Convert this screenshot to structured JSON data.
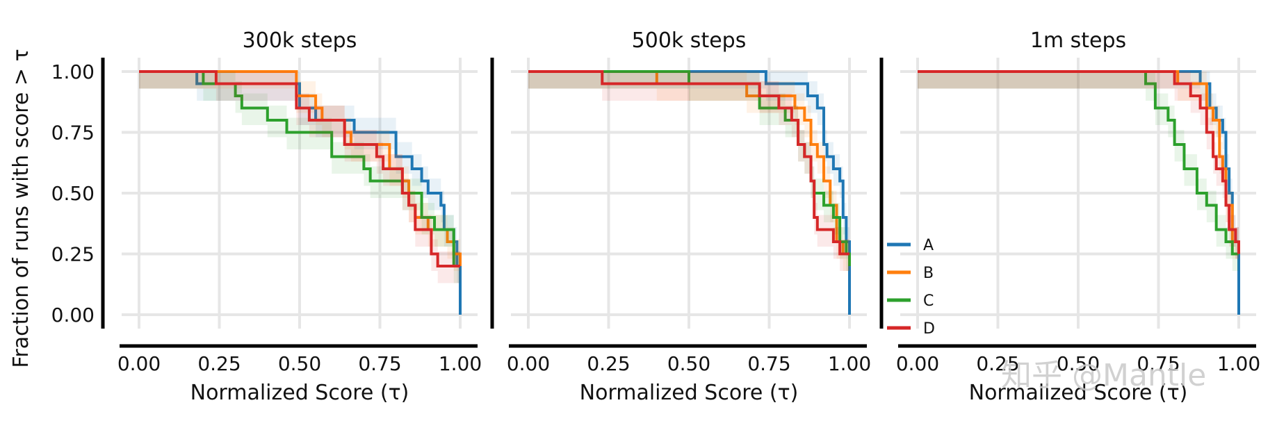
{
  "chart_data": {
    "type": "line",
    "step": true,
    "ylabel": "Fraction of runs with score > τ",
    "xlabel": "Normalized Score (τ)",
    "xlim": [
      0,
      1
    ],
    "ylim": [
      0,
      1
    ],
    "xticks": [
      "0.00",
      "0.25",
      "0.50",
      "0.75",
      "1.00"
    ],
    "yticks": [
      "0.00",
      "0.25",
      "0.50",
      "0.75",
      "1.00"
    ],
    "grid": true,
    "legend": {
      "placement": "bottom-left of third panel",
      "entries": [
        "A",
        "B",
        "C",
        "D"
      ]
    },
    "colors": {
      "A": "#1f77b4",
      "B": "#ff7f0e",
      "C": "#2ca02c",
      "D": "#d62728"
    },
    "panels": [
      {
        "title": "300k steps",
        "series": [
          {
            "name": "A",
            "points": [
              [
                0,
                1.0
              ],
              [
                0.17,
                1.0
              ],
              [
                0.18,
                0.95
              ],
              [
                0.48,
                0.95
              ],
              [
                0.5,
                0.85
              ],
              [
                0.55,
                0.8
              ],
              [
                0.66,
                0.8
              ],
              [
                0.67,
                0.75
              ],
              [
                0.78,
                0.75
              ],
              [
                0.8,
                0.7
              ],
              [
                0.8,
                0.65
              ],
              [
                0.84,
                0.65
              ],
              [
                0.85,
                0.6
              ],
              [
                0.88,
                0.55
              ],
              [
                0.9,
                0.5
              ],
              [
                0.94,
                0.45
              ],
              [
                0.95,
                0.35
              ],
              [
                0.98,
                0.3
              ],
              [
                0.99,
                0.2
              ],
              [
                1.0,
                0.0
              ]
            ]
          },
          {
            "name": "B",
            "points": [
              [
                0,
                1.0
              ],
              [
                0.24,
                1.0
              ],
              [
                0.25,
                1.0
              ],
              [
                0.48,
                1.0
              ],
              [
                0.49,
                0.9
              ],
              [
                0.55,
                0.85
              ],
              [
                0.57,
                0.8
              ],
              [
                0.64,
                0.75
              ],
              [
                0.66,
                0.7
              ],
              [
                0.76,
                0.7
              ],
              [
                0.78,
                0.6
              ],
              [
                0.82,
                0.55
              ],
              [
                0.84,
                0.45
              ],
              [
                0.86,
                0.4
              ],
              [
                0.9,
                0.35
              ],
              [
                0.96,
                0.3
              ],
              [
                0.98,
                0.25
              ],
              [
                1.0,
                0.2
              ]
            ]
          },
          {
            "name": "C",
            "points": [
              [
                0,
                1.0
              ],
              [
                0.19,
                1.0
              ],
              [
                0.2,
                0.95
              ],
              [
                0.3,
                0.9
              ],
              [
                0.32,
                0.85
              ],
              [
                0.4,
                0.8
              ],
              [
                0.46,
                0.75
              ],
              [
                0.58,
                0.75
              ],
              [
                0.6,
                0.65
              ],
              [
                0.7,
                0.6
              ],
              [
                0.72,
                0.55
              ],
              [
                0.81,
                0.55
              ],
              [
                0.82,
                0.5
              ],
              [
                0.88,
                0.4
              ],
              [
                0.92,
                0.35
              ],
              [
                0.98,
                0.2
              ],
              [
                1.0,
                0.2
              ]
            ]
          },
          {
            "name": "D",
            "points": [
              [
                0,
                1.0
              ],
              [
                0.23,
                1.0
              ],
              [
                0.24,
                0.95
              ],
              [
                0.47,
                0.95
              ],
              [
                0.49,
                0.85
              ],
              [
                0.53,
                0.8
              ],
              [
                0.6,
                0.8
              ],
              [
                0.64,
                0.7
              ],
              [
                0.74,
                0.65
              ],
              [
                0.76,
                0.6
              ],
              [
                0.8,
                0.6
              ],
              [
                0.82,
                0.5
              ],
              [
                0.84,
                0.45
              ],
              [
                0.86,
                0.35
              ],
              [
                0.91,
                0.25
              ],
              [
                0.93,
                0.2
              ],
              [
                0.98,
                0.2
              ],
              [
                1.0,
                0.2
              ]
            ]
          }
        ]
      },
      {
        "title": "500k steps",
        "series": [
          {
            "name": "A",
            "points": [
              [
                0,
                1.0
              ],
              [
                0.73,
                1.0
              ],
              [
                0.74,
                0.95
              ],
              [
                0.87,
                0.9
              ],
              [
                0.9,
                0.85
              ],
              [
                0.92,
                0.7
              ],
              [
                0.93,
                0.65
              ],
              [
                0.95,
                0.6
              ],
              [
                0.97,
                0.55
              ],
              [
                0.98,
                0.4
              ],
              [
                0.99,
                0.3
              ],
              [
                1.0,
                0.0
              ]
            ]
          },
          {
            "name": "B",
            "points": [
              [
                0,
                1.0
              ],
              [
                0.39,
                1.0
              ],
              [
                0.4,
                0.95
              ],
              [
                0.66,
                0.95
              ],
              [
                0.68,
                0.9
              ],
              [
                0.8,
                0.9
              ],
              [
                0.83,
                0.85
              ],
              [
                0.86,
                0.8
              ],
              [
                0.88,
                0.7
              ],
              [
                0.9,
                0.65
              ],
              [
                0.92,
                0.55
              ],
              [
                0.94,
                0.45
              ],
              [
                0.96,
                0.3
              ],
              [
                0.98,
                0.25
              ],
              [
                1.0,
                0.25
              ]
            ]
          },
          {
            "name": "C",
            "points": [
              [
                0,
                1.0
              ],
              [
                0.49,
                1.0
              ],
              [
                0.5,
                0.95
              ],
              [
                0.68,
                0.95
              ],
              [
                0.72,
                0.85
              ],
              [
                0.8,
                0.8
              ],
              [
                0.84,
                0.7
              ],
              [
                0.86,
                0.65
              ],
              [
                0.88,
                0.55
              ],
              [
                0.89,
                0.5
              ],
              [
                0.92,
                0.45
              ],
              [
                0.95,
                0.4
              ],
              [
                0.97,
                0.3
              ],
              [
                0.99,
                0.25
              ],
              [
                1.0,
                0.2
              ]
            ]
          },
          {
            "name": "D",
            "points": [
              [
                0,
                1.0
              ],
              [
                0.22,
                1.0
              ],
              [
                0.23,
                0.95
              ],
              [
                0.68,
                0.95
              ],
              [
                0.72,
                0.9
              ],
              [
                0.78,
                0.85
              ],
              [
                0.82,
                0.8
              ],
              [
                0.84,
                0.7
              ],
              [
                0.86,
                0.65
              ],
              [
                0.88,
                0.55
              ],
              [
                0.89,
                0.4
              ],
              [
                0.9,
                0.35
              ],
              [
                0.95,
                0.3
              ],
              [
                0.97,
                0.25
              ],
              [
                1.0,
                0.25
              ]
            ]
          }
        ]
      },
      {
        "title": "1m steps",
        "series": [
          {
            "name": "A",
            "points": [
              [
                0,
                1.0
              ],
              [
                0.87,
                1.0
              ],
              [
                0.88,
                0.95
              ],
              [
                0.91,
                0.85
              ],
              [
                0.93,
                0.8
              ],
              [
                0.95,
                0.75
              ],
              [
                0.96,
                0.6
              ],
              [
                0.97,
                0.5
              ],
              [
                0.98,
                0.35
              ],
              [
                0.99,
                0.3
              ],
              [
                1.0,
                0.0
              ]
            ]
          },
          {
            "name": "B",
            "points": [
              [
                0,
                1.0
              ],
              [
                0.8,
                1.0
              ],
              [
                0.81,
                0.95
              ],
              [
                0.88,
                0.95
              ],
              [
                0.9,
                0.85
              ],
              [
                0.92,
                0.8
              ],
              [
                0.94,
                0.65
              ],
              [
                0.95,
                0.6
              ],
              [
                0.96,
                0.45
              ],
              [
                0.98,
                0.3
              ],
              [
                1.0,
                0.25
              ]
            ]
          },
          {
            "name": "C",
            "points": [
              [
                0,
                1.0
              ],
              [
                0.7,
                1.0
              ],
              [
                0.71,
                0.95
              ],
              [
                0.74,
                0.85
              ],
              [
                0.78,
                0.8
              ],
              [
                0.8,
                0.7
              ],
              [
                0.83,
                0.6
              ],
              [
                0.87,
                0.5
              ],
              [
                0.9,
                0.45
              ],
              [
                0.93,
                0.35
              ],
              [
                0.96,
                0.3
              ],
              [
                0.98,
                0.25
              ],
              [
                1.0,
                0.25
              ]
            ]
          },
          {
            "name": "D",
            "points": [
              [
                0,
                1.0
              ],
              [
                0.79,
                1.0
              ],
              [
                0.8,
                0.95
              ],
              [
                0.85,
                0.9
              ],
              [
                0.88,
                0.85
              ],
              [
                0.9,
                0.75
              ],
              [
                0.92,
                0.65
              ],
              [
                0.93,
                0.6
              ],
              [
                0.95,
                0.55
              ],
              [
                0.96,
                0.45
              ],
              [
                0.97,
                0.35
              ],
              [
                0.99,
                0.3
              ],
              [
                1.0,
                0.25
              ]
            ]
          }
        ]
      }
    ]
  },
  "watermark": "知乎 @Mantle"
}
